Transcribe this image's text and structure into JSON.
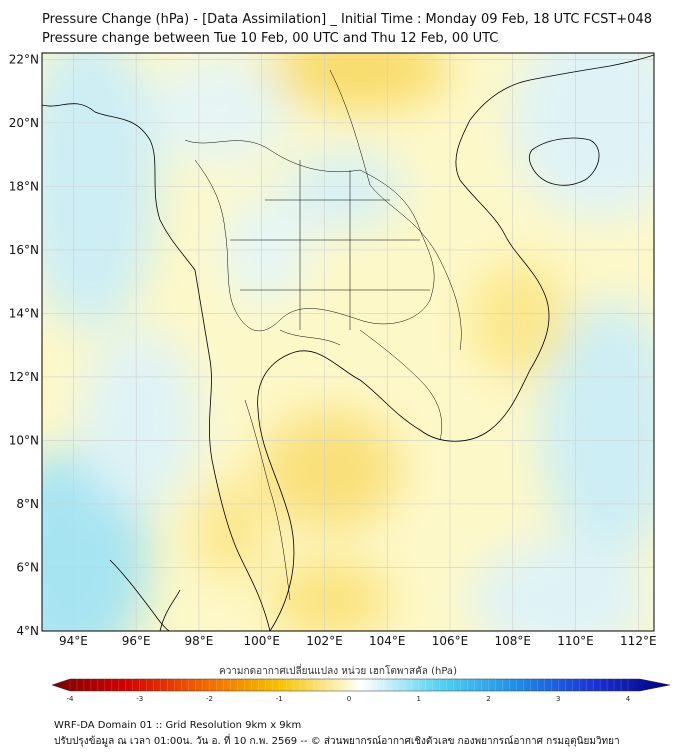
{
  "header": {
    "title": "Pressure Change (hPa) - [Data Assimilation] _ Initial Time : Monday 09 Feb, 18 UTC FCST+048",
    "subtitle": "Pressure change between Tue 10 Feb, 00 UTC and Thu 12 Feb, 00 UTC"
  },
  "map": {
    "lon_range": [
      93,
      112.5
    ],
    "lat_range": [
      4,
      22.2
    ],
    "lon_ticks": [
      "94°E",
      "96°E",
      "98°E",
      "100°E",
      "102°E",
      "104°E",
      "106°E",
      "108°E",
      "110°E",
      "112°E"
    ],
    "lat_ticks": [
      "4°N",
      "6°N",
      "8°N",
      "10°N",
      "12°N",
      "14°N",
      "16°N",
      "18°N",
      "20°N",
      "22°N"
    ],
    "colors": {
      "background": "#fdf8c8",
      "border": "#000000",
      "grid": "#c8c8c8"
    }
  },
  "colorbar": {
    "title": "ความกดอากาศเปลี่ยนแปลง หน่วย เฮกโตพาสคัล (hPa)",
    "range": [
      -4,
      4
    ],
    "tick_labels": [
      "-4",
      "-3",
      "-2",
      "-1",
      "0",
      "1",
      "2",
      "3",
      "4"
    ],
    "colors": {
      "low": "#7a0000",
      "mid_low": "#f5b700",
      "zero": "#ffffff",
      "mid_high": "#27c8e8",
      "high": "#00007a"
    }
  },
  "footer": {
    "line1": "WRF-DA Domain 01 :: Grid Resolution 9km x 9km",
    "line2": "ปรับปรุงข้อมูล ณ เวลา 01:00น. วัน อ. ที่ 10 ก.พ. 2569 -- © ส่วนพยากรณ์อากาศเชิงตัวเลข กองพยากรณ์อากาศ กรมอุตุนิยมวิทยา"
  }
}
